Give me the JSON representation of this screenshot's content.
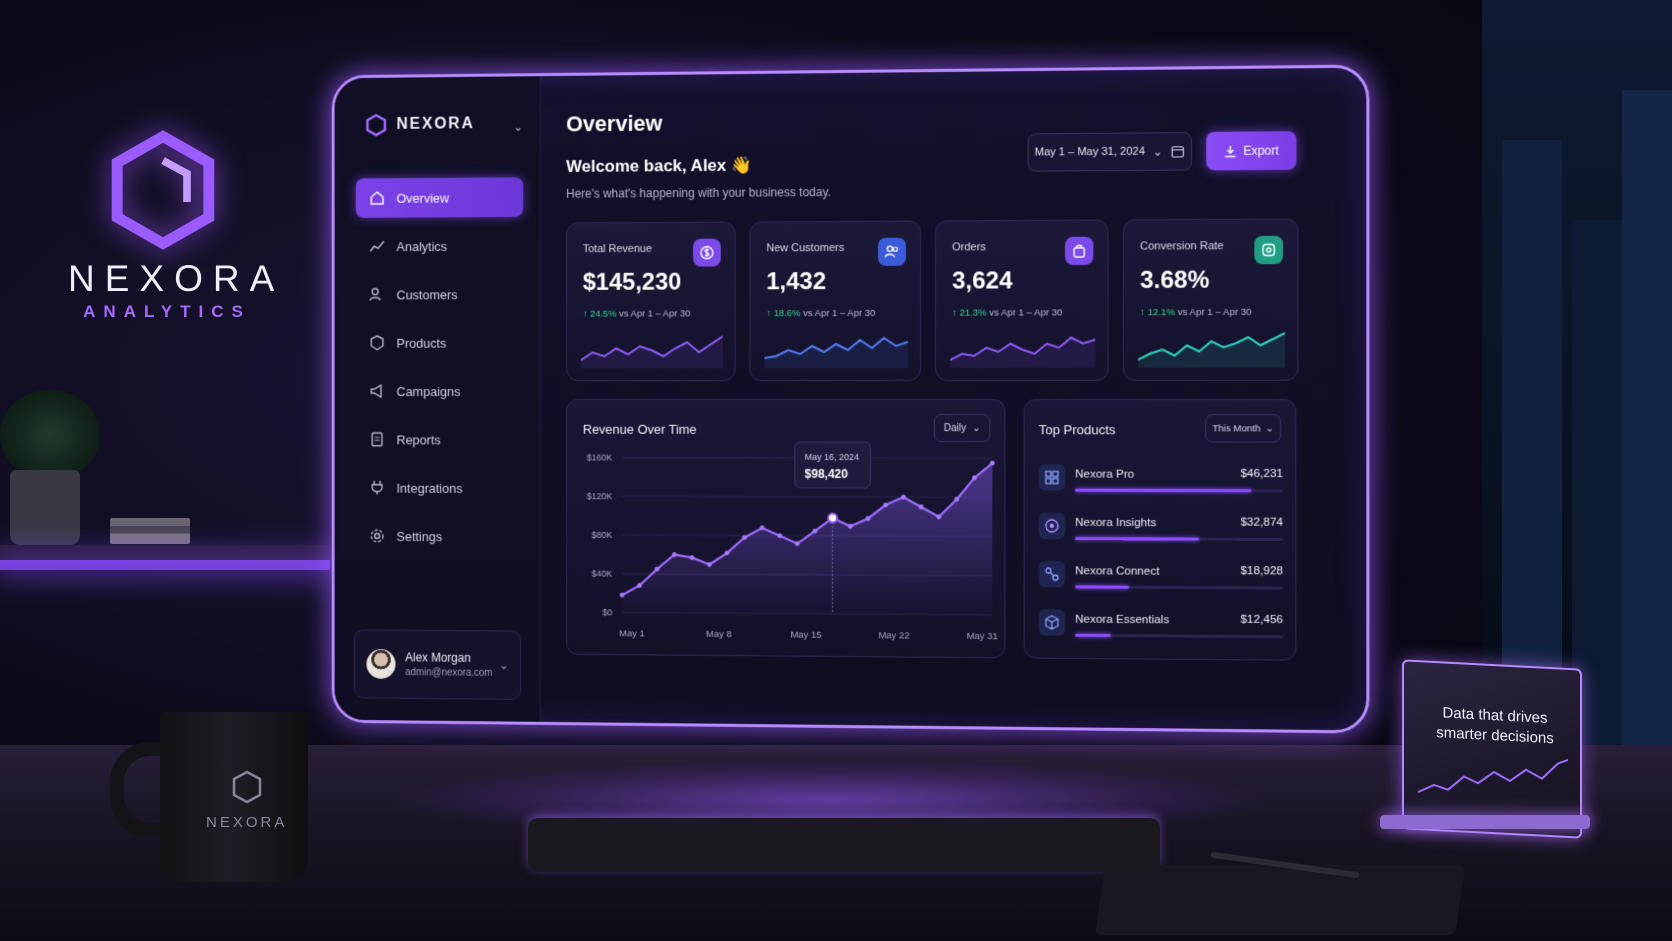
{
  "brand": {
    "name": "NEXORA",
    "subtitle": "ANALYTICS"
  },
  "mug": {
    "text": "NEXORA"
  },
  "desk_card": {
    "text": "Data that drives smarter decisions"
  },
  "app": {
    "logo_text": "NEXORA",
    "nav": [
      {
        "label": "Overview",
        "icon": "home-icon",
        "active": true
      },
      {
        "label": "Analytics",
        "icon": "chart-icon",
        "active": false
      },
      {
        "label": "Customers",
        "icon": "users-icon",
        "active": false
      },
      {
        "label": "Products",
        "icon": "box-icon",
        "active": false
      },
      {
        "label": "Campaigns",
        "icon": "megaphone-icon",
        "active": false
      },
      {
        "label": "Reports",
        "icon": "file-icon",
        "active": false
      },
      {
        "label": "Integrations",
        "icon": "plug-icon",
        "active": false
      },
      {
        "label": "Settings",
        "icon": "gear-icon",
        "active": false
      }
    ],
    "user": {
      "name": "Alex Morgan",
      "email": "admin@nexora.com"
    }
  },
  "header": {
    "title": "Overview",
    "welcome": "Welcome back, Alex 👋",
    "subtitle": "Here's what's happening with your business today.",
    "date_range": "May 1 – May 31, 2024",
    "export_label": "Export"
  },
  "kpis": [
    {
      "label": "Total Revenue",
      "value": "$145,230",
      "change": "24.5%",
      "compare": "vs Apr 1 – Apr 30",
      "icon": "dollar-icon",
      "color": "#7b4ae8",
      "spark_color": "#8b5cf6"
    },
    {
      "label": "New Customers",
      "value": "1,432",
      "change": "18.6%",
      "compare": "vs Apr 1 – Apr 30",
      "icon": "users-icon",
      "color": "#3b5bdb",
      "spark_color": "#4f7cf6"
    },
    {
      "label": "Orders",
      "value": "3,624",
      "change": "21.3%",
      "compare": "vs Apr 1 – Apr 30",
      "icon": "bag-icon",
      "color": "#7b4ae8",
      "spark_color": "#8b5cf6"
    },
    {
      "label": "Conversion Rate",
      "value": "3.68%",
      "change": "12.1%",
      "compare": "vs Apr 1 – Apr 30",
      "icon": "percent-icon",
      "color": "#1f9e85",
      "spark_color": "#2dd4bf"
    }
  ],
  "revenue_chart": {
    "title": "Revenue Over Time",
    "range_select": "Daily",
    "tooltip": {
      "date": "May 16, 2024",
      "value": "$98,420"
    }
  },
  "chart_data": {
    "type": "area",
    "title": "Revenue Over Time",
    "x_ticks": [
      "May 1",
      "May 8",
      "May 15",
      "May 22",
      "May 31"
    ],
    "y_ticks": [
      "$0",
      "$40K",
      "$80K",
      "$120K",
      "$160K"
    ],
    "ylim": [
      0,
      160000
    ],
    "series": [
      {
        "values": [
          18000,
          28000,
          45000,
          60000,
          57000,
          50000,
          62000,
          78000,
          88000,
          80000,
          72000,
          85000,
          98420,
          90000,
          98000,
          112000,
          120000,
          110000,
          100000,
          118000,
          140000,
          155000
        ]
      }
    ],
    "highlight_index": 12
  },
  "top_products": {
    "title": "Top Products",
    "range_select": "This Month",
    "items": [
      {
        "name": "Nexora Pro",
        "value": "$46,231",
        "share": 0.85,
        "icon": "grid-icon"
      },
      {
        "name": "Nexora Insights",
        "value": "$32,874",
        "share": 0.6,
        "icon": "target-icon"
      },
      {
        "name": "Nexora Connect",
        "value": "$18,928",
        "share": 0.26,
        "icon": "link-icon"
      },
      {
        "name": "Nexora Essentials",
        "value": "$12,456",
        "share": 0.17,
        "icon": "cube-icon"
      }
    ]
  }
}
